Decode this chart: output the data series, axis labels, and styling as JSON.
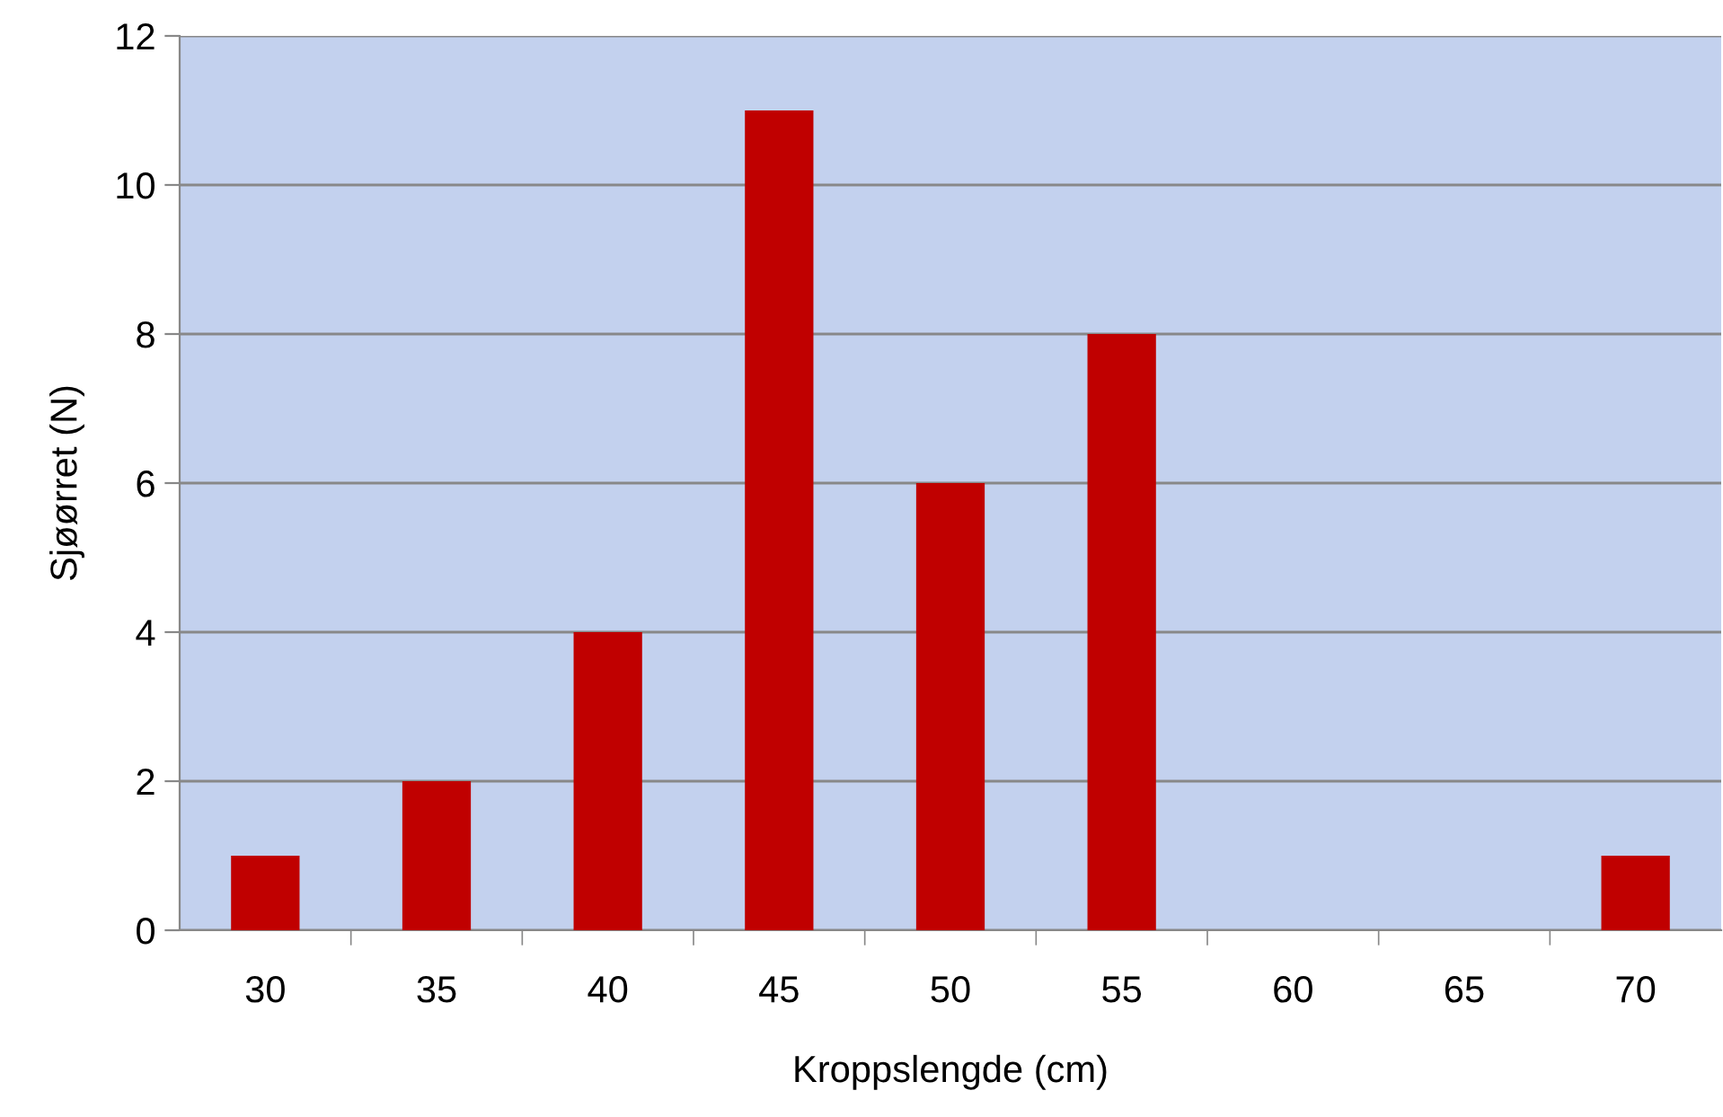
{
  "chart_data": {
    "type": "bar",
    "xlabel": "Kroppslengde (cm)",
    "ylabel": "Sjøørret (N)",
    "categories": [
      "30",
      "35",
      "40",
      "45",
      "50",
      "55",
      "60",
      "65",
      "70"
    ],
    "series": [
      {
        "color": "#c00000",
        "values": [
          1,
          2,
          4,
          11,
          6,
          8,
          0,
          0,
          1
        ]
      }
    ],
    "ylim": [
      0,
      12
    ],
    "yticks": [
      0,
      2,
      4,
      6,
      8,
      10,
      12
    ],
    "grid": "y",
    "legend": false
  }
}
